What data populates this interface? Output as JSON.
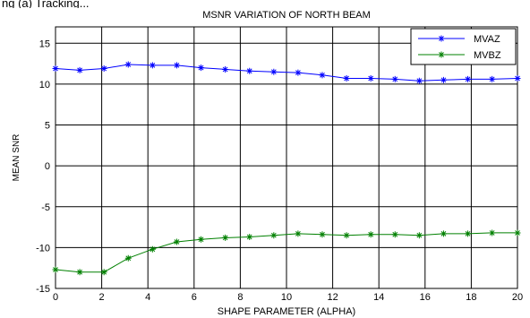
{
  "caption": "ng (a) Tracking...",
  "chart_data": {
    "type": "line",
    "title": "MSNR VARIATION OF NORTH BEAM",
    "xlabel": "SHAPE PARAMETER (ALPHA)",
    "ylabel": "MEAN SNR",
    "xlim": [
      0,
      20
    ],
    "ylim": [
      -15,
      17
    ],
    "xticks": [
      0,
      2,
      4,
      6,
      8,
      10,
      12,
      14,
      16,
      18,
      20
    ],
    "yticks": [
      -15,
      -10,
      -5,
      0,
      5,
      10,
      15
    ],
    "grid": true,
    "legend_position": "top-right",
    "series": [
      {
        "name": "MVAZ",
        "color": "#0000ff",
        "marker": "*",
        "x": [
          0,
          1.05,
          2.1,
          3.15,
          4.2,
          5.25,
          6.3,
          7.35,
          8.4,
          9.45,
          10.5,
          11.55,
          12.6,
          13.65,
          14.7,
          15.75,
          16.8,
          17.85,
          18.9,
          20
        ],
        "values": [
          11.9,
          11.7,
          11.9,
          12.4,
          12.3,
          12.3,
          12.0,
          11.8,
          11.6,
          11.5,
          11.4,
          11.1,
          10.7,
          10.7,
          10.6,
          10.4,
          10.5,
          10.6,
          10.6,
          10.7
        ]
      },
      {
        "name": "MVBZ",
        "color": "#008000",
        "marker": "*",
        "x": [
          0,
          1.05,
          2.1,
          3.15,
          4.2,
          5.25,
          6.3,
          7.35,
          8.4,
          9.45,
          10.5,
          11.55,
          12.6,
          13.65,
          14.7,
          15.75,
          16.8,
          17.85,
          18.9,
          20
        ],
        "values": [
          -12.7,
          -13.0,
          -13.0,
          -11.3,
          -10.2,
          -9.3,
          -9.0,
          -8.8,
          -8.7,
          -8.5,
          -8.3,
          -8.4,
          -8.5,
          -8.4,
          -8.4,
          -8.5,
          -8.3,
          -8.3,
          -8.2,
          -8.2
        ]
      }
    ]
  }
}
